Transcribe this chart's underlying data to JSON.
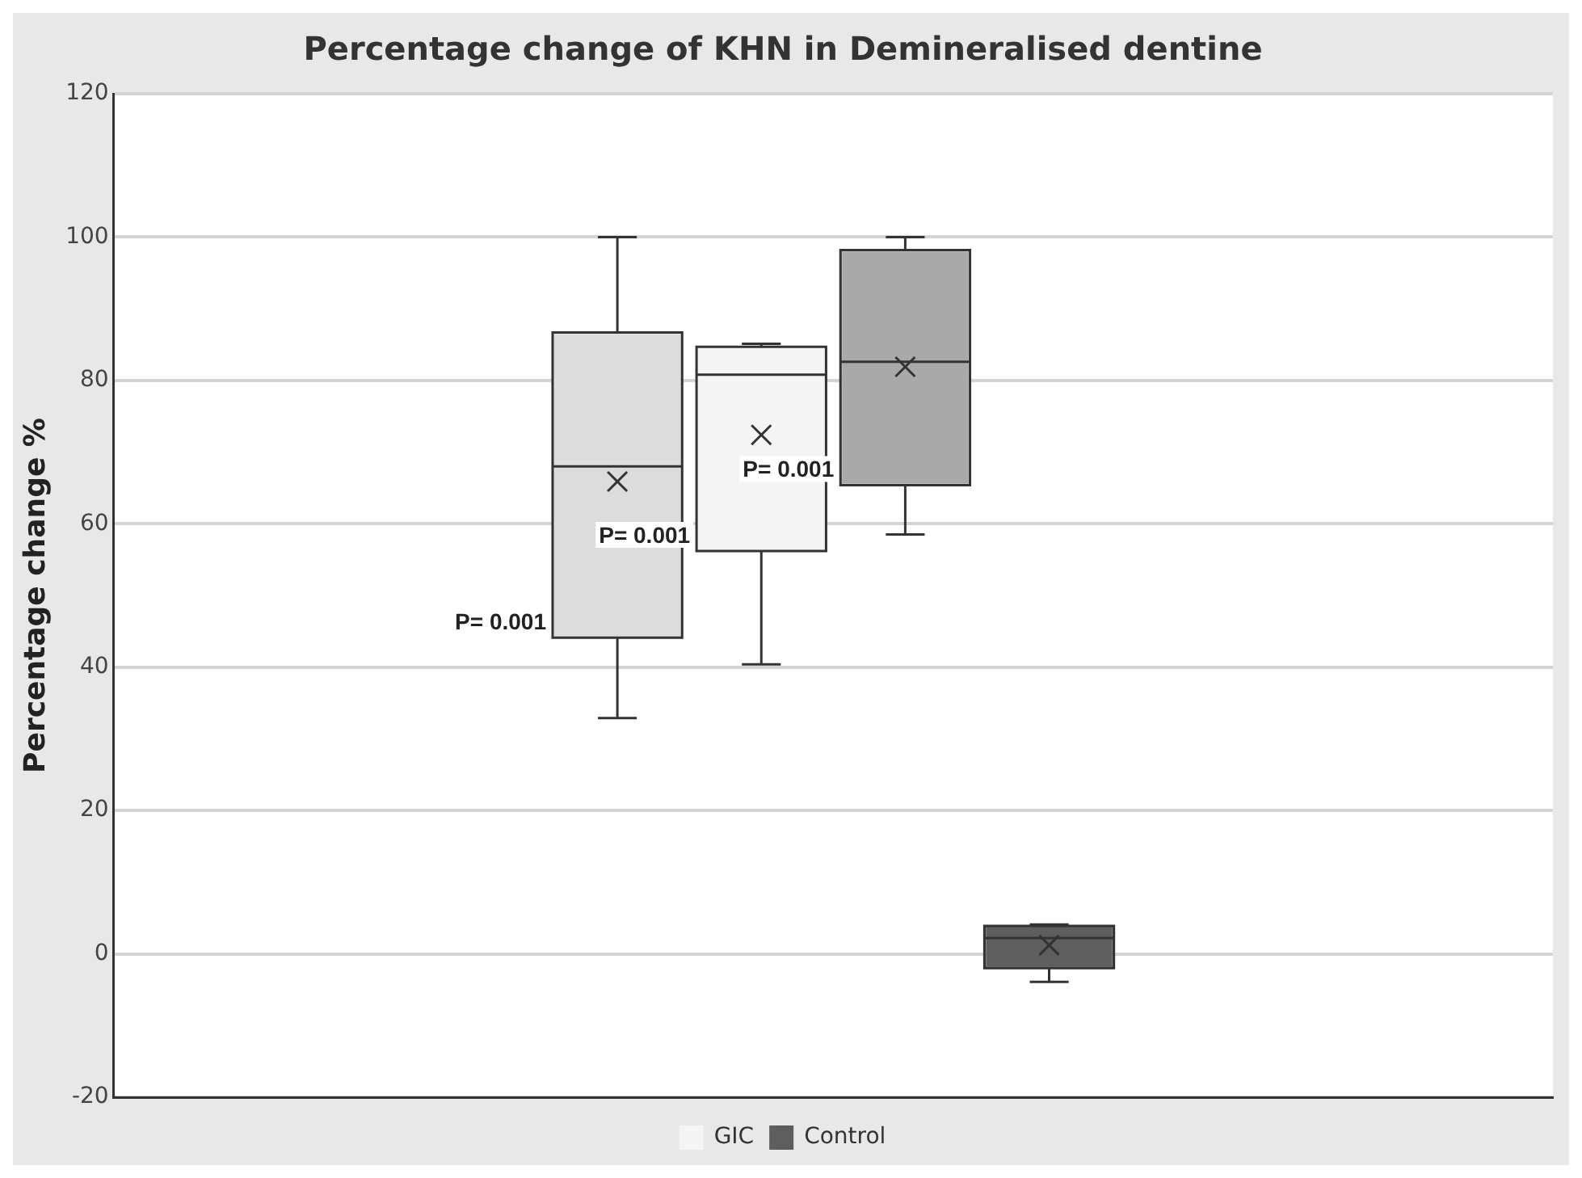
{
  "chart_data": {
    "type": "box",
    "title": "Percentage change of KHN in Demineralised dentine",
    "ylabel": "Percentage change %",
    "categories": [
      null
    ],
    "series": [
      {
        "color": "#dcdcdc",
        "boxes": [
          {
            "low": 32.9,
            "q1": 44.1,
            "median": 68.0,
            "q3": 86.7,
            "high": 100,
            "mean": 65.9
          }
        ]
      },
      {
        "name": "GIC",
        "color": "#f4f4f4",
        "boxes": [
          {
            "low": 40.4,
            "q1": 56.2,
            "median": 80.8,
            "q3": 84.7,
            "high": 85.1,
            "mean": 72.4
          }
        ]
      },
      {
        "color": "#a9a9a9",
        "boxes": [
          {
            "low": 58.5,
            "q1": 65.4,
            "median": 82.6,
            "q3": 98.2,
            "high": 100,
            "mean": 81.9
          }
        ]
      },
      {
        "name": "Control",
        "color": "#5e5e5e",
        "boxes": [
          {
            "low": -3.9,
            "q1": -2.0,
            "median": 2.2,
            "q3": 3.9,
            "high": 4.1,
            "mean": 1.2
          }
        ]
      }
    ],
    "annotations": [
      "P= 0.001",
      "P= 0.001",
      "P= 0.001"
    ],
    "ylim": [
      -20,
      120
    ],
    "yticks": [
      -20,
      0,
      20,
      40,
      60,
      80,
      100,
      120
    ],
    "grid": "y",
    "legend": "bottom",
    "tick_labels": "y"
  }
}
